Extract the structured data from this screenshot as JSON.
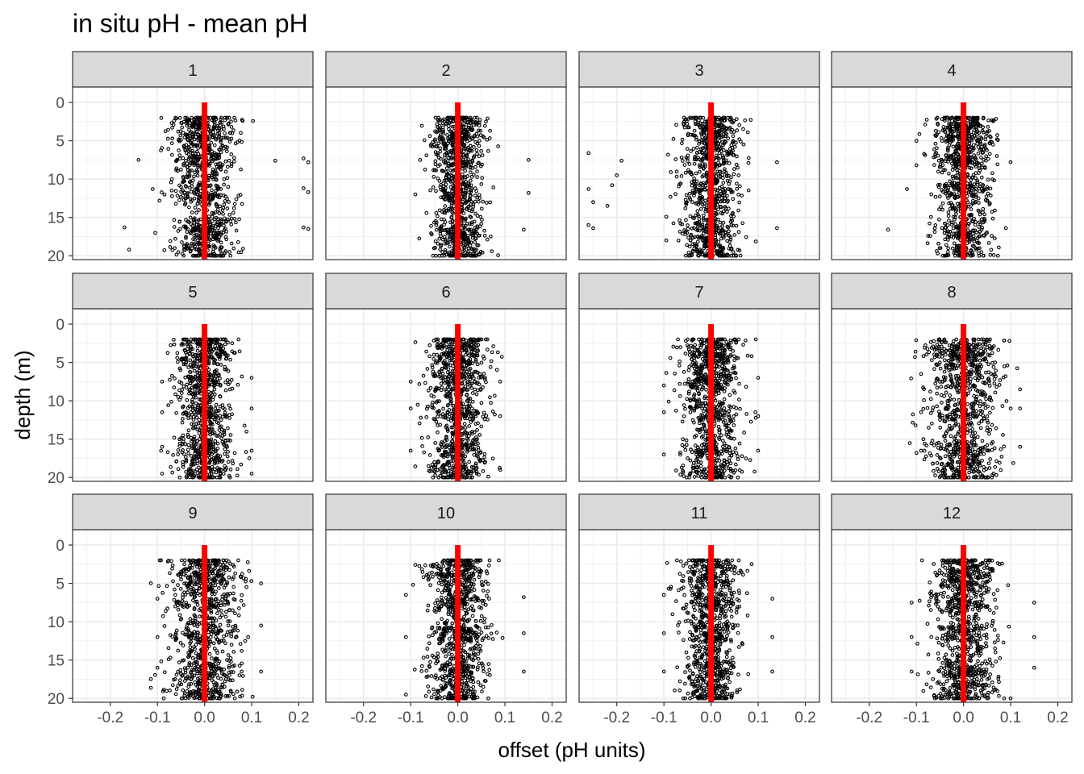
{
  "chart_data": {
    "type": "scatter",
    "title": "in situ pH - mean pH",
    "xlabel": "offset (pH units)",
    "ylabel": "depth (m)",
    "xlim": [
      -0.28,
      0.23
    ],
    "ylim": [
      20.5,
      -2
    ],
    "y_reversed": true,
    "x_ticks": [
      -0.2,
      -0.1,
      0.0,
      0.1,
      0.2
    ],
    "x_tick_labels": [
      "-0.2",
      "-0.1",
      "0.0",
      "0.1",
      "0.2"
    ],
    "y_ticks": [
      0,
      5,
      10,
      15,
      20
    ],
    "y_tick_labels": [
      "0",
      "5",
      "10",
      "15",
      "20"
    ],
    "grid": true,
    "reference_line": {
      "x": 0.0,
      "color": "#ff0000"
    },
    "point_color": "#000000",
    "facet_layout": {
      "rows": 3,
      "cols": 4
    },
    "panels": [
      {
        "label": "1",
        "depth_range": [
          2,
          20
        ],
        "spread": 0.055,
        "outliers": [
          [
            -0.17,
            16.3
          ],
          [
            -0.16,
            19.2
          ],
          [
            -0.14,
            7.5
          ],
          [
            0.21,
            7.3
          ],
          [
            0.22,
            7.8
          ],
          [
            0.21,
            11.2
          ],
          [
            0.22,
            11.7
          ],
          [
            0.21,
            16.3
          ],
          [
            0.22,
            16.5
          ],
          [
            -0.11,
            11.3
          ],
          [
            0.15,
            7.6
          ]
        ]
      },
      {
        "label": "2",
        "depth_range": [
          2,
          20
        ],
        "spread": 0.045,
        "outliers": [
          [
            0.15,
            7.5
          ],
          [
            0.15,
            11.8
          ],
          [
            0.14,
            16.6
          ],
          [
            -0.08,
            7.5
          ],
          [
            -0.09,
            12.0
          ]
        ]
      },
      {
        "label": "3",
        "depth_range": [
          2,
          20
        ],
        "spread": 0.05,
        "outliers": [
          [
            -0.26,
            6.6
          ],
          [
            -0.19,
            7.6
          ],
          [
            -0.2,
            9.5
          ],
          [
            -0.21,
            10.8
          ],
          [
            -0.26,
            11.3
          ],
          [
            -0.25,
            13.0
          ],
          [
            -0.22,
            13.5
          ],
          [
            -0.26,
            16.0
          ],
          [
            -0.25,
            16.4
          ],
          [
            0.14,
            7.8
          ],
          [
            0.14,
            16.4
          ]
        ]
      },
      {
        "label": "4",
        "depth_range": [
          2,
          20
        ],
        "spread": 0.05,
        "outliers": [
          [
            -0.16,
            16.6
          ],
          [
            -0.12,
            11.3
          ],
          [
            -0.1,
            5.0
          ],
          [
            0.09,
            16.4
          ],
          [
            0.1,
            7.8
          ],
          [
            -0.1,
            8.2
          ]
        ]
      },
      {
        "label": "5",
        "depth_range": [
          2,
          20
        ],
        "spread": 0.05,
        "outliers": [
          [
            -0.09,
            7.5
          ],
          [
            -0.09,
            11.5
          ],
          [
            -0.09,
            16.0
          ],
          [
            -0.09,
            19.5
          ],
          [
            0.1,
            7.0
          ],
          [
            0.1,
            11.0
          ],
          [
            0.1,
            16.5
          ],
          [
            0.1,
            19.5
          ]
        ]
      },
      {
        "label": "6",
        "depth_range": [
          2,
          20
        ],
        "spread": 0.05,
        "outliers": [
          [
            -0.1,
            7.5
          ],
          [
            -0.1,
            11.0
          ],
          [
            -0.1,
            16.5
          ],
          [
            0.09,
            7.5
          ],
          [
            0.09,
            12.0
          ],
          [
            0.09,
            19.0
          ]
        ]
      },
      {
        "label": "7",
        "depth_range": [
          2,
          20
        ],
        "spread": 0.05,
        "outliers": [
          [
            -0.1,
            8.0
          ],
          [
            -0.1,
            11.5
          ],
          [
            -0.1,
            17.0
          ],
          [
            0.1,
            7.0
          ],
          [
            0.1,
            12.0
          ],
          [
            0.1,
            16.5
          ]
        ]
      },
      {
        "label": "8",
        "depth_range": [
          2,
          20
        ],
        "spread": 0.06,
        "outliers": [
          [
            -0.09,
            6.5
          ],
          [
            -0.09,
            11.5
          ],
          [
            -0.09,
            16.5
          ],
          [
            0.12,
            8.5
          ],
          [
            0.12,
            11.0
          ],
          [
            0.12,
            16.0
          ]
        ]
      },
      {
        "label": "9",
        "depth_range": [
          2,
          20
        ],
        "spread": 0.06,
        "outliers": [
          [
            -0.1,
            7.0
          ],
          [
            -0.1,
            12.0
          ],
          [
            -0.1,
            16.0
          ],
          [
            0.12,
            5.0
          ],
          [
            0.12,
            10.5
          ],
          [
            0.12,
            16.5
          ]
        ]
      },
      {
        "label": "10",
        "depth_range": [
          2,
          20
        ],
        "spread": 0.05,
        "outliers": [
          [
            -0.11,
            6.5
          ],
          [
            -0.11,
            12.0
          ],
          [
            -0.11,
            19.5
          ],
          [
            0.14,
            6.8
          ],
          [
            0.14,
            11.5
          ],
          [
            0.14,
            16.5
          ]
        ]
      },
      {
        "label": "11",
        "depth_range": [
          2,
          20
        ],
        "spread": 0.05,
        "outliers": [
          [
            -0.1,
            6.5
          ],
          [
            -0.1,
            11.5
          ],
          [
            -0.1,
            16.5
          ],
          [
            0.13,
            7.0
          ],
          [
            0.13,
            12.0
          ],
          [
            0.13,
            16.5
          ]
        ]
      },
      {
        "label": "12",
        "depth_range": [
          2,
          20
        ],
        "spread": 0.055,
        "outliers": [
          [
            -0.11,
            7.5
          ],
          [
            -0.11,
            12.0
          ],
          [
            -0.11,
            16.5
          ],
          [
            0.15,
            7.5
          ],
          [
            0.15,
            12.0
          ],
          [
            0.15,
            16.0
          ],
          [
            0.1,
            20.0
          ]
        ]
      }
    ]
  }
}
